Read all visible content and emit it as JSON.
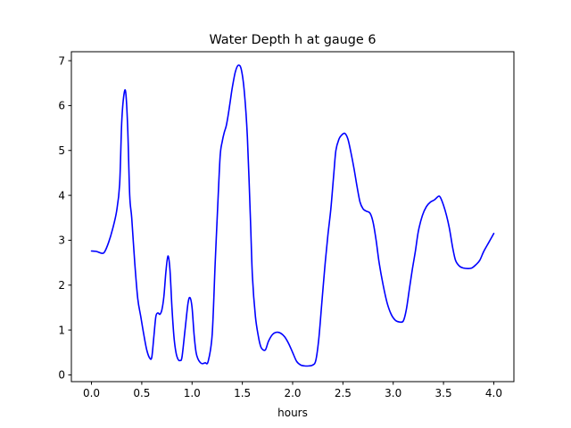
{
  "chart_data": {
    "type": "line",
    "title": "Water Depth h at gauge 6",
    "xlabel": "hours",
    "ylabel": "",
    "xlim": [
      -0.2,
      4.2
    ],
    "ylim": [
      -0.15,
      7.2
    ],
    "xticks": [
      0.0,
      0.5,
      1.0,
      1.5,
      2.0,
      2.5,
      3.0,
      3.5,
      4.0
    ],
    "xtick_labels": [
      "0.0",
      "0.5",
      "1.0",
      "1.5",
      "2.0",
      "2.5",
      "3.0",
      "3.5",
      "4.0"
    ],
    "yticks": [
      0,
      1,
      2,
      3,
      4,
      5,
      6,
      7
    ],
    "ytick_labels": [
      "0",
      "1",
      "2",
      "3",
      "4",
      "5",
      "6",
      "7"
    ],
    "grid": false,
    "line_color": "#0000ff",
    "series": [
      {
        "name": "h",
        "x": [
          0.0,
          0.05,
          0.1,
          0.13,
          0.17,
          0.21,
          0.25,
          0.28,
          0.3,
          0.32,
          0.34,
          0.36,
          0.38,
          0.4,
          0.43,
          0.46,
          0.49,
          0.52,
          0.55,
          0.58,
          0.6,
          0.62,
          0.64,
          0.66,
          0.68,
          0.7,
          0.72,
          0.74,
          0.76,
          0.78,
          0.8,
          0.82,
          0.84,
          0.86,
          0.88,
          0.9,
          0.93,
          0.96,
          0.98,
          1.0,
          1.02,
          1.04,
          1.06,
          1.08,
          1.1,
          1.13,
          1.16,
          1.2,
          1.23,
          1.26,
          1.28,
          1.3,
          1.32,
          1.34,
          1.36,
          1.38,
          1.4,
          1.43,
          1.46,
          1.49,
          1.52,
          1.55,
          1.58,
          1.6,
          1.63,
          1.66,
          1.68,
          1.7,
          1.73,
          1.76,
          1.8,
          1.84,
          1.88,
          1.92,
          1.96,
          2.0,
          2.04,
          2.08,
          2.12,
          2.16,
          2.2,
          2.23,
          2.26,
          2.29,
          2.32,
          2.35,
          2.38,
          2.41,
          2.43,
          2.46,
          2.49,
          2.52,
          2.55,
          2.58,
          2.61,
          2.64,
          2.67,
          2.7,
          2.73,
          2.77,
          2.8,
          2.83,
          2.86,
          2.9,
          2.94,
          2.98,
          3.02,
          3.06,
          3.1,
          3.13,
          3.16,
          3.19,
          3.22,
          3.25,
          3.29,
          3.33,
          3.37,
          3.41,
          3.45,
          3.47,
          3.5,
          3.53,
          3.56,
          3.59,
          3.62,
          3.66,
          3.7,
          3.74,
          3.78,
          3.82,
          3.86,
          3.9,
          3.95,
          4.0
        ],
        "values": [
          2.76,
          2.75,
          2.71,
          2.74,
          2.95,
          3.25,
          3.65,
          4.25,
          5.6,
          6.2,
          6.3,
          5.5,
          4.0,
          3.5,
          2.5,
          1.7,
          1.3,
          0.9,
          0.55,
          0.37,
          0.4,
          0.85,
          1.3,
          1.38,
          1.35,
          1.45,
          1.75,
          2.3,
          2.65,
          2.35,
          1.5,
          0.85,
          0.5,
          0.35,
          0.32,
          0.4,
          1.0,
          1.6,
          1.72,
          1.5,
          0.9,
          0.5,
          0.35,
          0.28,
          0.25,
          0.27,
          0.3,
          0.9,
          2.5,
          4.0,
          4.9,
          5.2,
          5.4,
          5.55,
          5.8,
          6.1,
          6.4,
          6.75,
          6.9,
          6.8,
          6.3,
          5.3,
          3.5,
          2.2,
          1.3,
          0.85,
          0.65,
          0.57,
          0.56,
          0.75,
          0.9,
          0.95,
          0.93,
          0.85,
          0.7,
          0.5,
          0.3,
          0.22,
          0.2,
          0.2,
          0.22,
          0.32,
          0.8,
          1.6,
          2.4,
          3.1,
          3.7,
          4.5,
          5.0,
          5.25,
          5.35,
          5.38,
          5.25,
          4.95,
          4.6,
          4.2,
          3.85,
          3.7,
          3.65,
          3.6,
          3.4,
          3.0,
          2.5,
          2.0,
          1.6,
          1.35,
          1.22,
          1.18,
          1.2,
          1.45,
          1.9,
          2.35,
          2.75,
          3.2,
          3.55,
          3.75,
          3.85,
          3.9,
          3.98,
          3.95,
          3.78,
          3.55,
          3.25,
          2.85,
          2.55,
          2.42,
          2.38,
          2.37,
          2.38,
          2.45,
          2.55,
          2.75,
          2.95,
          3.15
        ]
      }
    ]
  }
}
